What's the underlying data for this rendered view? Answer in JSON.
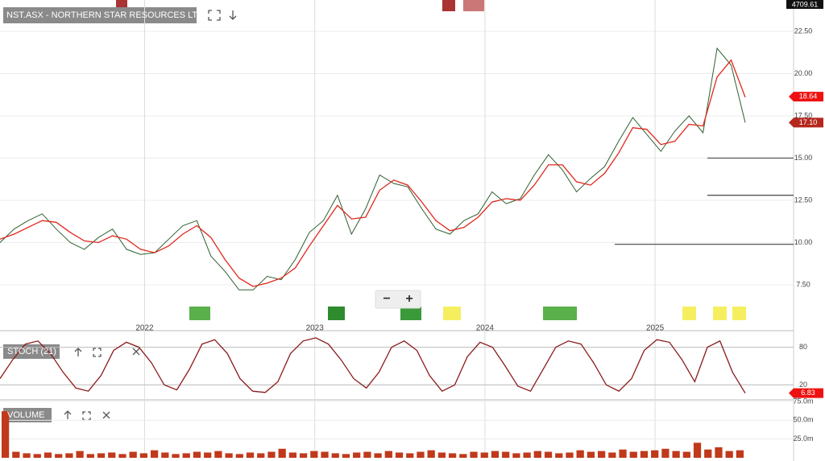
{
  "chart_data": [
    {
      "type": "line",
      "title": "NST.ASX - NORTHERN STAR RESOURCES LTD",
      "header_value": "4709.61",
      "controls": {
        "zoom_out": "−",
        "zoom_in": "+"
      },
      "xlim": [
        2021.15,
        2025.53
      ],
      "xticks": [
        2022,
        2023,
        2024,
        2025
      ],
      "ylim": [
        5.07,
        24.36
      ],
      "yticks": [
        {
          "value": 7.5,
          "label": "7.50"
        },
        {
          "value": 10,
          "label": "10.00"
        },
        {
          "value": 12.5,
          "label": "12.50"
        },
        {
          "value": 15,
          "label": "15.00"
        },
        {
          "value": 17.5,
          "label": "17.50"
        },
        {
          "value": 20,
          "label": "20.00"
        },
        {
          "value": 22.5,
          "label": "22.50"
        }
      ],
      "grid": true,
      "series": [
        {
          "color": "#2f5f2f",
          "values": [
            10.0,
            10.8,
            11.3,
            11.7,
            10.8,
            10.0,
            9.6,
            10.3,
            10.8,
            9.6,
            9.3,
            9.4,
            10.2,
            11.0,
            11.3,
            9.2,
            8.3,
            7.2,
            7.2,
            8.0,
            7.8,
            9.0,
            10.6,
            11.3,
            12.8,
            10.5,
            12.0,
            14.0,
            13.5,
            13.3,
            12.0,
            10.8,
            10.5,
            11.3,
            11.7,
            13.0,
            12.3,
            12.6,
            14.0,
            15.2,
            14.3,
            13.0,
            13.8,
            14.5,
            16.0,
            17.4,
            16.4,
            15.4,
            16.6,
            17.5,
            16.5,
            21.5,
            20.5,
            17.1
          ]
        },
        {
          "color": "#e0271c",
          "values": [
            10.2,
            10.5,
            10.9,
            11.3,
            11.2,
            10.6,
            10.1,
            10.0,
            10.4,
            10.2,
            9.6,
            9.4,
            9.8,
            10.5,
            11.0,
            10.3,
            9.0,
            7.9,
            7.4,
            7.6,
            7.9,
            8.5,
            9.8,
            11.0,
            12.2,
            11.4,
            11.5,
            13.1,
            13.7,
            13.4,
            12.4,
            11.3,
            10.7,
            10.9,
            11.5,
            12.4,
            12.6,
            12.5,
            13.4,
            14.6,
            14.6,
            13.6,
            13.4,
            14.1,
            15.3,
            16.8,
            16.7,
            15.8,
            16.0,
            17.0,
            16.9,
            19.8,
            20.8,
            18.6
          ]
        }
      ],
      "hlines": [
        15.0,
        12.8,
        9.9
      ],
      "hline_color": "#555555",
      "tags": [
        {
          "value": 18.64,
          "label": "18.64",
          "color": "#ee1111"
        },
        {
          "value": 17.1,
          "label": "17.10",
          "color": "#b5281e"
        }
      ]
    },
    {
      "type": "line",
      "title": "STOCH (21)",
      "xlim": [
        2021.15,
        2025.53
      ],
      "ylim": [
        0,
        100
      ],
      "yticks": [
        20,
        80
      ],
      "grid": true,
      "series": [
        {
          "color": "#8b1a1a",
          "values": [
            30,
            60,
            85,
            90,
            70,
            40,
            15,
            10,
            35,
            75,
            88,
            80,
            55,
            20,
            12,
            45,
            85,
            92,
            70,
            30,
            10,
            8,
            25,
            70,
            90,
            95,
            85,
            60,
            30,
            15,
            40,
            80,
            90,
            75,
            35,
            10,
            20,
            65,
            88,
            80,
            50,
            18,
            10,
            45,
            80,
            90,
            85,
            55,
            20,
            10,
            30,
            75,
            92,
            88,
            60,
            25,
            80,
            90,
            40,
            6.83
          ]
        }
      ],
      "tags": [
        {
          "value": 6.83,
          "label": "6.83",
          "color": "#ee1111"
        }
      ]
    },
    {
      "type": "bar",
      "title": "VOLUME",
      "xlim": [
        2021.15,
        2025.53
      ],
      "ylim": [
        0,
        75
      ],
      "yticks": [
        {
          "value": 25,
          "label": "25.0m"
        },
        {
          "value": 50,
          "label": "50.0m"
        },
        {
          "value": 75,
          "label": "75.0m"
        }
      ],
      "grid": true,
      "color": "#c0391b",
      "values": [
        62,
        8,
        6,
        5,
        7,
        5,
        6,
        9,
        5,
        6,
        7,
        5,
        8,
        6,
        10,
        7,
        5,
        6,
        8,
        7,
        9,
        6,
        5,
        7,
        6,
        8,
        12,
        7,
        6,
        9,
        8,
        6,
        5,
        7,
        8,
        6,
        9,
        7,
        6,
        8,
        10,
        7,
        6,
        5,
        8,
        7,
        9,
        8,
        6,
        7,
        9,
        8,
        6,
        7,
        10,
        8,
        9,
        7,
        11,
        8,
        9,
        10,
        12,
        9,
        8,
        20,
        11,
        14,
        9,
        10
      ]
    }
  ]
}
